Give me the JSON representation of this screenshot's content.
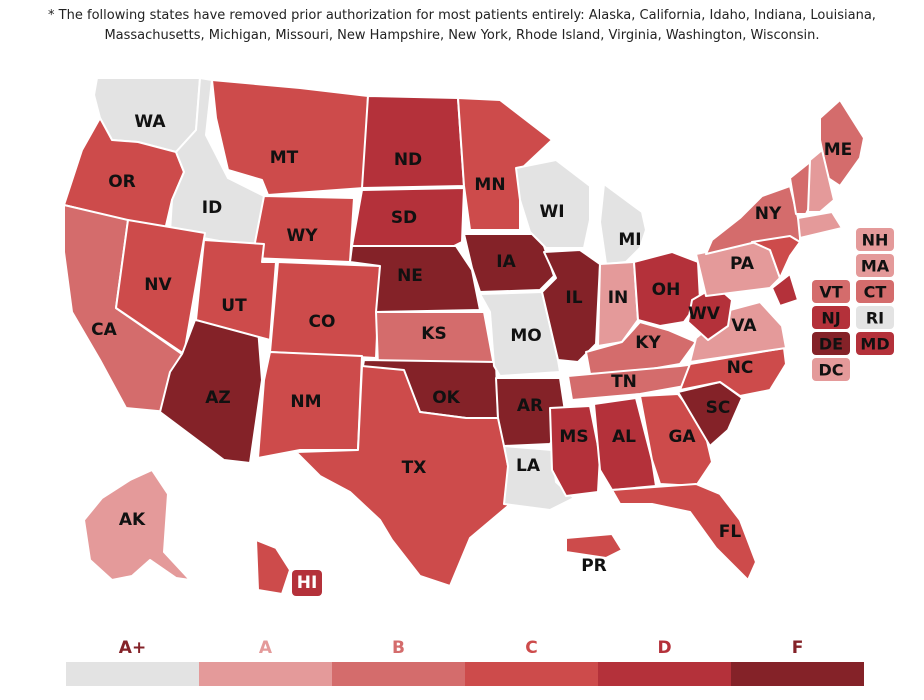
{
  "note": "* The following states have removed prior authorization for most patients entirely: Alaska, California, Idaho, Indiana, Louisiana, Massachusetts, Michigan, Missouri, New Hampshire, New York, Rhode Island, Virginia, Washington, Wisconsin.",
  "grade_colors": {
    "A+": "#e3e3e3",
    "A": "#e49a9a",
    "B": "#d46c6c",
    "C": "#cd4b4b",
    "D": "#b4313a",
    "F": "#842228"
  },
  "legend": [
    "A+",
    "A",
    "B",
    "C",
    "D",
    "F"
  ],
  "states": [
    {
      "abbr": "WA",
      "grade": "A+"
    },
    {
      "abbr": "OR",
      "grade": "C"
    },
    {
      "abbr": "CA",
      "grade": "B"
    },
    {
      "abbr": "ID",
      "grade": "A+"
    },
    {
      "abbr": "NV",
      "grade": "C"
    },
    {
      "abbr": "AZ",
      "grade": "F"
    },
    {
      "abbr": "MT",
      "grade": "C"
    },
    {
      "abbr": "WY",
      "grade": "C"
    },
    {
      "abbr": "UT",
      "grade": "C"
    },
    {
      "abbr": "CO",
      "grade": "C"
    },
    {
      "abbr": "NM",
      "grade": "C"
    },
    {
      "abbr": "ND",
      "grade": "D"
    },
    {
      "abbr": "SD",
      "grade": "D"
    },
    {
      "abbr": "NE",
      "grade": "F"
    },
    {
      "abbr": "KS",
      "grade": "B"
    },
    {
      "abbr": "OK",
      "grade": "F"
    },
    {
      "abbr": "TX",
      "grade": "C"
    },
    {
      "abbr": "MN",
      "grade": "C"
    },
    {
      "abbr": "IA",
      "grade": "F"
    },
    {
      "abbr": "MO",
      "grade": "A+"
    },
    {
      "abbr": "AR",
      "grade": "F"
    },
    {
      "abbr": "LA",
      "grade": "A+"
    },
    {
      "abbr": "WI",
      "grade": "A+"
    },
    {
      "abbr": "IL",
      "grade": "F"
    },
    {
      "abbr": "MI",
      "grade": "A+"
    },
    {
      "abbr": "IN",
      "grade": "A"
    },
    {
      "abbr": "OH",
      "grade": "D"
    },
    {
      "abbr": "KY",
      "grade": "B"
    },
    {
      "abbr": "TN",
      "grade": "B"
    },
    {
      "abbr": "MS",
      "grade": "D"
    },
    {
      "abbr": "AL",
      "grade": "D"
    },
    {
      "abbr": "GA",
      "grade": "C"
    },
    {
      "abbr": "FL",
      "grade": "C"
    },
    {
      "abbr": "SC",
      "grade": "F"
    },
    {
      "abbr": "NC",
      "grade": "C"
    },
    {
      "abbr": "VA",
      "grade": "A"
    },
    {
      "abbr": "WV",
      "grade": "D"
    },
    {
      "abbr": "PA",
      "grade": "A"
    },
    {
      "abbr": "NY",
      "grade": "B"
    },
    {
      "abbr": "ME",
      "grade": "B"
    },
    {
      "abbr": "AK",
      "grade": "A"
    },
    {
      "abbr": "HI",
      "grade": "D"
    },
    {
      "abbr": "PR",
      "grade": "C"
    }
  ],
  "ne_chips": [
    {
      "abbr": "NH",
      "grade": "A"
    },
    {
      "abbr": "MA",
      "grade": "A"
    },
    {
      "abbr": "VT",
      "grade": "B"
    },
    {
      "abbr": "CT",
      "grade": "B"
    },
    {
      "abbr": "NJ",
      "grade": "D"
    },
    {
      "abbr": "RI",
      "grade": "A+"
    },
    {
      "abbr": "DE",
      "grade": "F"
    },
    {
      "abbr": "MD",
      "grade": "D"
    },
    {
      "abbr": "DC",
      "grade": "A"
    }
  ]
}
